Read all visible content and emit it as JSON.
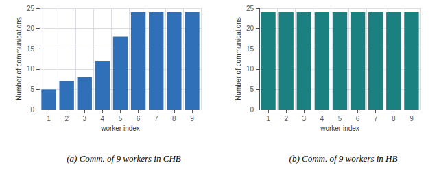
{
  "chart_data": [
    {
      "type": "bar",
      "title": "(a) Comm. of 9 workers in CHB",
      "x_label": "worker index",
      "y_label": "Number of communications",
      "categories": [
        "1",
        "2",
        "3",
        "4",
        "5",
        "6",
        "7",
        "8",
        "9"
      ],
      "values": [
        5,
        7,
        8,
        12,
        18,
        24,
        24,
        24,
        24
      ],
      "color": "#3070B8",
      "ylim": [
        0,
        25
      ],
      "yticks": [
        0,
        5,
        10,
        15,
        20,
        25
      ],
      "grid": true
    },
    {
      "type": "bar",
      "title": "(b) Comm. of 9 workers in HB",
      "x_label": "worker index",
      "y_label": "Number of communications",
      "categories": [
        "1",
        "2",
        "3",
        "4",
        "5",
        "6",
        "7",
        "8",
        "9"
      ],
      "values": [
        24,
        24,
        24,
        24,
        24,
        24,
        24,
        24,
        24
      ],
      "color": "#1A8080",
      "ylim": [
        0,
        25
      ],
      "yticks": [
        0,
        5,
        10,
        15,
        20,
        25
      ],
      "grid": true
    }
  ]
}
